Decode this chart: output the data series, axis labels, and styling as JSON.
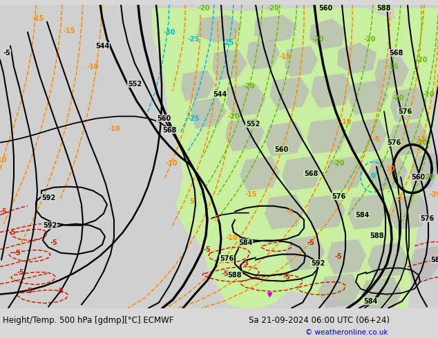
{
  "title": "Height/Temp. 500 hPa [gdmp][°C] ECMWF",
  "date_label": "Sa 21-09-2024 06:00 UTC (06+24)",
  "copyright": "© weatheronline.co.uk",
  "bg_color": "#d8d8d8",
  "green_area_color": "#c8f0a0",
  "gray_land_color": "#b0b0b0",
  "fig_width": 6.34,
  "fig_height": 4.9,
  "dpi": 100,
  "title_fontsize": 8.5,
  "date_fontsize": 8.5,
  "copyright_fontsize": 7.5,
  "copyright_color": "#0000cc",
  "bottom_bar_color": "#e0e0e0",
  "black": "#000000",
  "orange": "#ff8c00",
  "red": "#cc2200",
  "green_line": "#66bb00",
  "cyan_line": "#00bbcc"
}
